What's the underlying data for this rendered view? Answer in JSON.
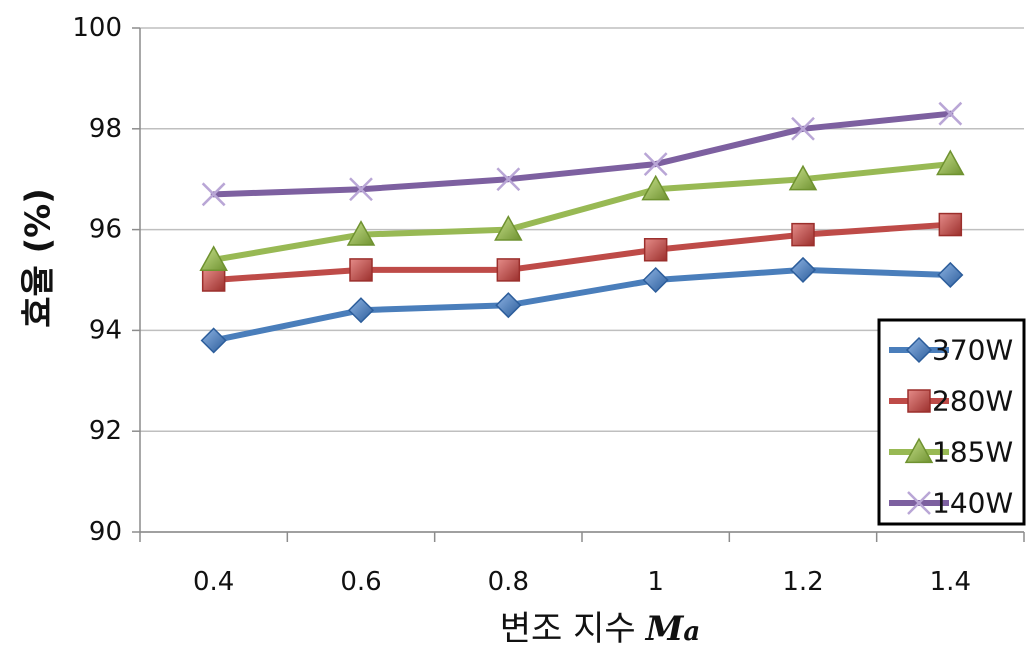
{
  "chart_data": {
    "type": "line",
    "xlabel": "변조 지수",
    "xlabel_var": "M",
    "xlabel_sub": "a",
    "ylabel": "효율 (%)",
    "categories": [
      "0.4",
      "0.6",
      "0.8",
      "1",
      "1.2",
      "1.4"
    ],
    "ylim": [
      90,
      100
    ],
    "yticks": [
      "90",
      "92",
      "94",
      "96",
      "98",
      "100"
    ],
    "grid": true,
    "legend_position": "bottom-right",
    "series": [
      {
        "name": "370W",
        "marker": "diamond",
        "color": "#4a7ebb",
        "values": [
          93.8,
          94.4,
          94.5,
          95.0,
          95.2,
          95.1
        ]
      },
      {
        "name": "280W",
        "marker": "square",
        "color": "#be4b48",
        "values": [
          95.0,
          95.2,
          95.2,
          95.6,
          95.9,
          96.1
        ]
      },
      {
        "name": "185W",
        "marker": "triangle",
        "color": "#98b954",
        "values": [
          95.4,
          95.9,
          96.0,
          96.8,
          97.0,
          97.3
        ]
      },
      {
        "name": "140W",
        "marker": "x",
        "color": "#7d60a0",
        "values": [
          96.7,
          96.8,
          97.0,
          97.3,
          98.0,
          98.3
        ]
      }
    ]
  }
}
